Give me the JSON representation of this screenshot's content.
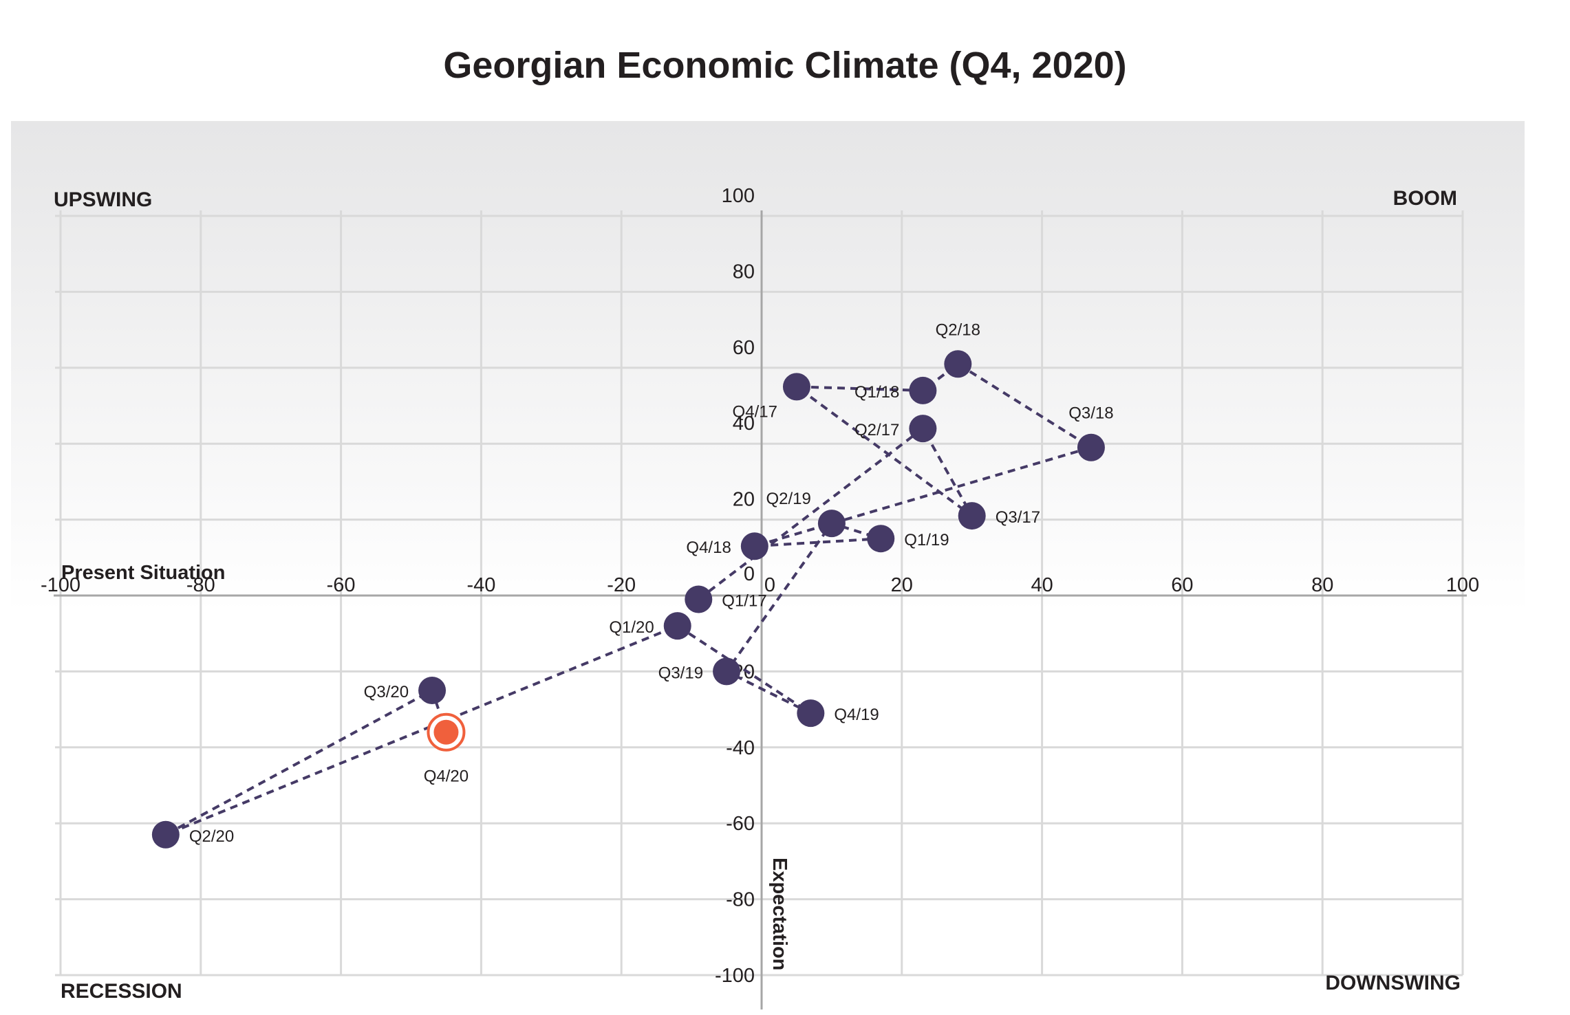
{
  "chart_data": {
    "type": "scatter",
    "title": "Georgian Economic Climate (Q4, 2020)",
    "xlabel": "Present Situation",
    "ylabel": "Expectation",
    "xlim": [
      -100,
      100
    ],
    "ylim": [
      -100,
      100
    ],
    "x_ticks": [
      "-100",
      "-80",
      "-60",
      "-40",
      "-20",
      "0",
      "20",
      "40",
      "60",
      "80",
      "100"
    ],
    "y_ticks": [
      "100",
      "80",
      "60",
      "40",
      "20",
      "0",
      "-20",
      "-40",
      "-60",
      "-80",
      "-100"
    ],
    "quadrants": {
      "top_left": "UPSWING",
      "top_right": "BOOM",
      "bottom_left": "RECESSION",
      "bottom_right": "DOWNSWING"
    },
    "grid": true,
    "connected": true,
    "colors": {
      "points": "#453a66",
      "highlight": "#f0603c",
      "line": "#453a66"
    },
    "points": [
      {
        "label": "Q1/17",
        "x": -9,
        "y": -1,
        "label_pos": "right"
      },
      {
        "label": "Q2/17",
        "x": 23,
        "y": 44,
        "label_pos": "left"
      },
      {
        "label": "Q3/17",
        "x": 30,
        "y": 21,
        "label_pos": "right"
      },
      {
        "label": "Q4/17",
        "x": 5,
        "y": 55,
        "label_pos": "below-left"
      },
      {
        "label": "Q1/18",
        "x": 23,
        "y": 54,
        "label_pos": "left"
      },
      {
        "label": "Q2/18",
        "x": 28,
        "y": 61,
        "label_pos": "above"
      },
      {
        "label": "Q3/18",
        "x": 47,
        "y": 39,
        "label_pos": "above"
      },
      {
        "label": "Q4/18",
        "x": -1,
        "y": 13,
        "label_pos": "left"
      },
      {
        "label": "Q1/19",
        "x": 17,
        "y": 15,
        "label_pos": "right"
      },
      {
        "label": "Q2/19",
        "x": 10,
        "y": 19,
        "label_pos": "above-left"
      },
      {
        "label": "Q3/19",
        "x": -5,
        "y": -20,
        "label_pos": "left"
      },
      {
        "label": "Q4/19",
        "x": 7,
        "y": -31,
        "label_pos": "right"
      },
      {
        "label": "Q1/20",
        "x": -12,
        "y": -8,
        "label_pos": "left"
      },
      {
        "label": "Q2/20",
        "x": -85,
        "y": -63,
        "label_pos": "right"
      },
      {
        "label": "Q3/20",
        "x": -47,
        "y": -25,
        "label_pos": "left"
      },
      {
        "label": "Q4/20",
        "x": -45,
        "y": -36,
        "label_pos": "below",
        "highlight": true
      }
    ]
  }
}
